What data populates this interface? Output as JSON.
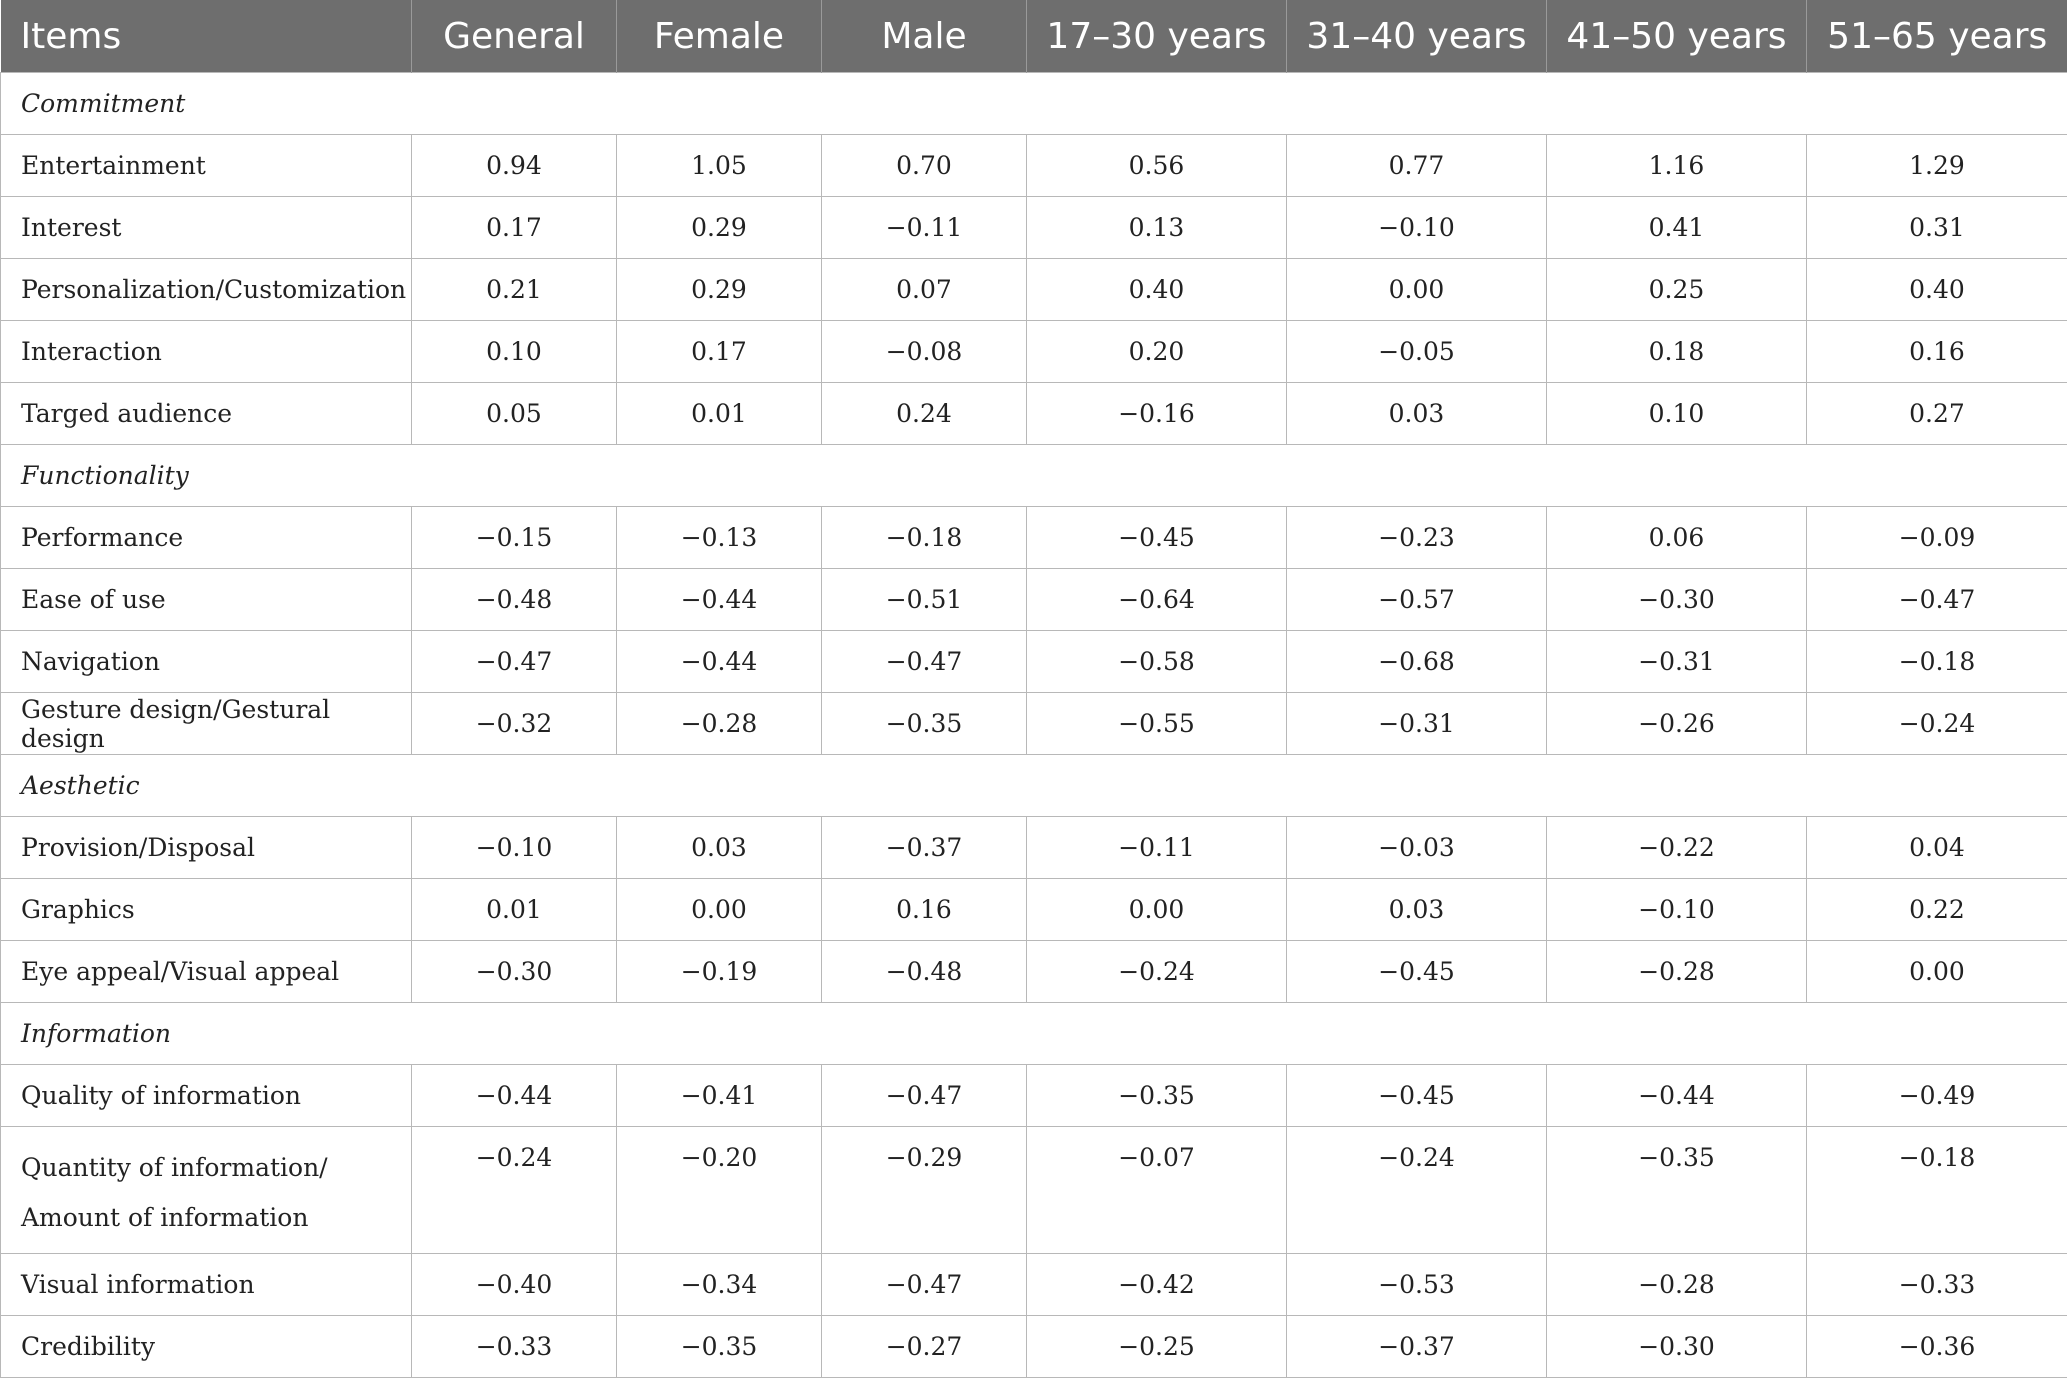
{
  "headers": [
    "Items",
    "General",
    "Female",
    "Male",
    "17–30 years",
    "31–40 years",
    "41–50 years",
    "51–65 years"
  ],
  "groups": [
    {
      "name": "Commitment",
      "rows": [
        {
          "item": "Entertainment",
          "values": [
            "0.94",
            "1.05",
            "0.70",
            "0.56",
            "0.77",
            "1.16",
            "1.29"
          ]
        },
        {
          "item": "Interest",
          "values": [
            "0.17",
            "0.29",
            "−0.11",
            "0.13",
            "−0.10",
            "0.41",
            "0.31"
          ]
        },
        {
          "item": "Personalization/Customization",
          "values": [
            "0.21",
            "0.29",
            "0.07",
            "0.40",
            "0.00",
            "0.25",
            "0.40"
          ]
        },
        {
          "item": "Interaction",
          "values": [
            "0.10",
            "0.17",
            "−0.08",
            "0.20",
            "−0.05",
            "0.18",
            "0.16"
          ]
        },
        {
          "item": "Targed audience",
          "values": [
            "0.05",
            "0.01",
            "0.24",
            "−0.16",
            "0.03",
            "0.10",
            "0.27"
          ]
        }
      ]
    },
    {
      "name": "Functionality",
      "rows": [
        {
          "item": "Performance",
          "values": [
            "−0.15",
            "−0.13",
            "−0.18",
            "−0.45",
            "−0.23",
            "0.06",
            "−0.09"
          ]
        },
        {
          "item": "Ease of use",
          "values": [
            "−0.48",
            "−0.44",
            "−0.51",
            "−0.64",
            "−0.57",
            "−0.30",
            "−0.47"
          ]
        },
        {
          "item": "Navigation",
          "values": [
            "−0.47",
            "−0.44",
            "−0.47",
            "−0.58",
            "−0.68",
            "−0.31",
            "−0.18"
          ]
        },
        {
          "item": "Gesture design/Gestural design",
          "values": [
            "−0.32",
            "−0.28",
            "−0.35",
            "−0.55",
            "−0.31",
            "−0.26",
            "−0.24"
          ]
        }
      ]
    },
    {
      "name": "Aesthetic",
      "rows": [
        {
          "item": "Provision/Disposal",
          "values": [
            "−0.10",
            "0.03",
            "−0.37",
            "−0.11",
            "−0.03",
            "−0.22",
            "0.04"
          ]
        },
        {
          "item": "Graphics",
          "values": [
            "0.01",
            "0.00",
            "0.16",
            "0.00",
            "0.03",
            "−0.10",
            "0.22"
          ]
        },
        {
          "item": "Eye appeal/Visual appeal",
          "values": [
            "−0.30",
            "−0.19",
            "−0.48",
            "−0.24",
            "−0.45",
            "−0.28",
            "0.00"
          ]
        }
      ]
    },
    {
      "name": "Information",
      "rows": [
        {
          "item": "Quality of information",
          "values": [
            "−0.44",
            "−0.41",
            "−0.47",
            "−0.35",
            "−0.45",
            "−0.44",
            "−0.49"
          ]
        },
        {
          "item": "Quantity of information/ Amount of information",
          "item_lines": [
            "Quantity of information/",
            "Amount of information"
          ],
          "values": [
            "−0.24",
            "−0.20",
            "−0.29",
            "−0.07",
            "−0.24",
            "−0.35",
            "−0.18"
          ]
        },
        {
          "item": "Visual information",
          "values": [
            "−0.40",
            "−0.34",
            "−0.47",
            "−0.42",
            "−0.53",
            "−0.28",
            "−0.33"
          ]
        },
        {
          "item": "Credibility",
          "values": [
            "−0.33",
            "−0.35",
            "−0.27",
            "−0.25",
            "−0.37",
            "−0.30",
            "−0.36"
          ]
        }
      ]
    }
  ]
}
